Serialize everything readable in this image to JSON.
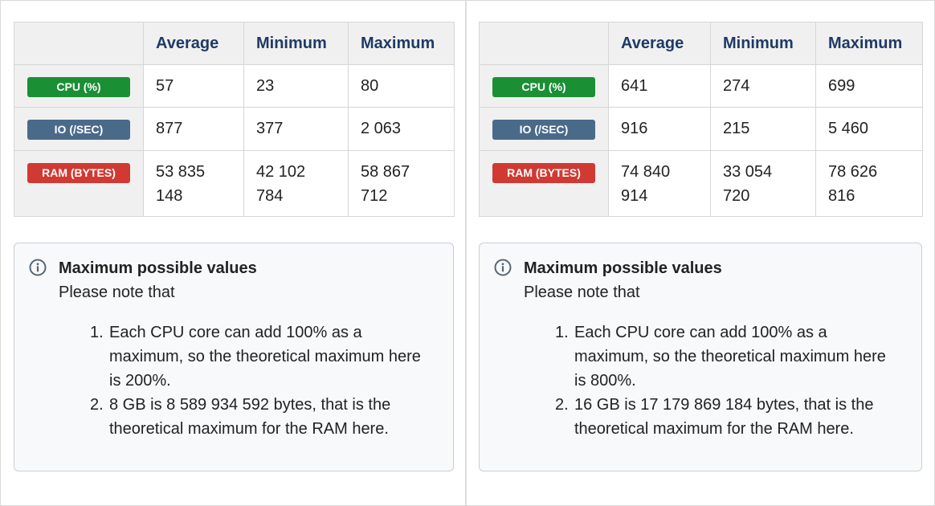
{
  "colors": {
    "cpu_badge": "#1a8f34",
    "io_badge": "#4a6a8a",
    "ram_badge": "#d03a33",
    "header_text": "#1e3a66"
  },
  "panels": [
    {
      "table": {
        "headers": [
          "Average",
          "Minimum",
          "Maximum"
        ],
        "rows": [
          {
            "label": "CPU (%)",
            "values": [
              "57",
              "23",
              "80"
            ]
          },
          {
            "label": "IO (/SEC)",
            "values": [
              "877",
              "377",
              "2 063"
            ]
          },
          {
            "label": "RAM (BYTES)",
            "values": [
              [
                "53 835",
                "148"
              ],
              [
                "42 102",
                "784"
              ],
              [
                "58 867",
                "712"
              ]
            ]
          }
        ]
      },
      "note": {
        "icon": "info-circle-icon",
        "title": "Maximum possible values",
        "intro": "Please note that",
        "items": [
          {
            "num": "1.",
            "lines": [
              "Each CPU core can add 100% as a",
              "maximum, so the theoretical maximum here",
              "is 200%."
            ]
          },
          {
            "num": "2.",
            "lines": [
              "8 GB is 8 589 934 592 bytes, that is the",
              "theoretical maximum for the RAM here."
            ]
          }
        ]
      }
    },
    {
      "table": {
        "headers": [
          "Average",
          "Minimum",
          "Maximum"
        ],
        "rows": [
          {
            "label": "CPU (%)",
            "values": [
              "641",
              "274",
              "699"
            ]
          },
          {
            "label": "IO (/SEC)",
            "values": [
              "916",
              "215",
              "5 460"
            ]
          },
          {
            "label": "RAM (BYTES)",
            "values": [
              [
                "74 840",
                "914"
              ],
              [
                "33 054",
                "720"
              ],
              [
                "78 626",
                "816"
              ]
            ]
          }
        ]
      },
      "note": {
        "icon": "info-circle-icon",
        "title": "Maximum possible values",
        "intro": "Please note that",
        "items": [
          {
            "num": "1.",
            "lines": [
              "Each CPU core can add 100% as a",
              "maximum, so the theoretical maximum here",
              "is 800%."
            ]
          },
          {
            "num": "2.",
            "lines": [
              "16 GB is 17 179 869 184 bytes, that is the",
              "theoretical maximum for the RAM here."
            ]
          }
        ]
      }
    }
  ]
}
